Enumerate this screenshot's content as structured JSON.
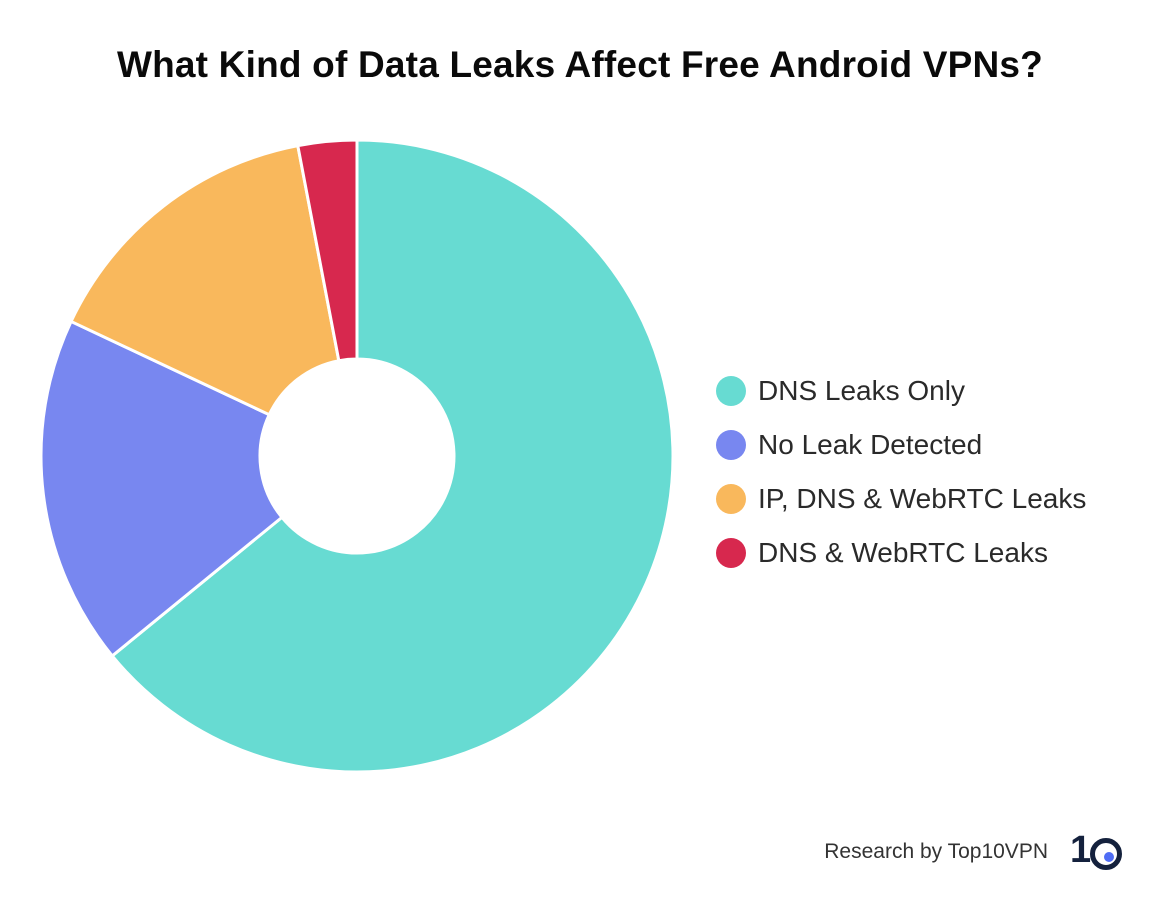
{
  "chart_data": {
    "type": "pie",
    "title": "What Kind of Data Leaks Affect Free Android VPNs?",
    "categories": [
      "DNS Leaks Only",
      "No Leak Detected",
      "IP, DNS & WebRTC Leaks",
      "DNS & WebRTC Leaks"
    ],
    "values": [
      64.1,
      17.9,
      15.0,
      3.0
    ],
    "colors": [
      "#67dbd2",
      "#7887f0",
      "#f9b85c",
      "#d7284e"
    ],
    "legend_position": "right",
    "donut": true
  },
  "footer": {
    "credit": "Research by Top10VPN",
    "logo_text": "10"
  },
  "colors": {
    "background": "#ffffff",
    "title": "#0a0a0a",
    "logo": "#14213d",
    "logo_dot": "#4f6df5"
  }
}
